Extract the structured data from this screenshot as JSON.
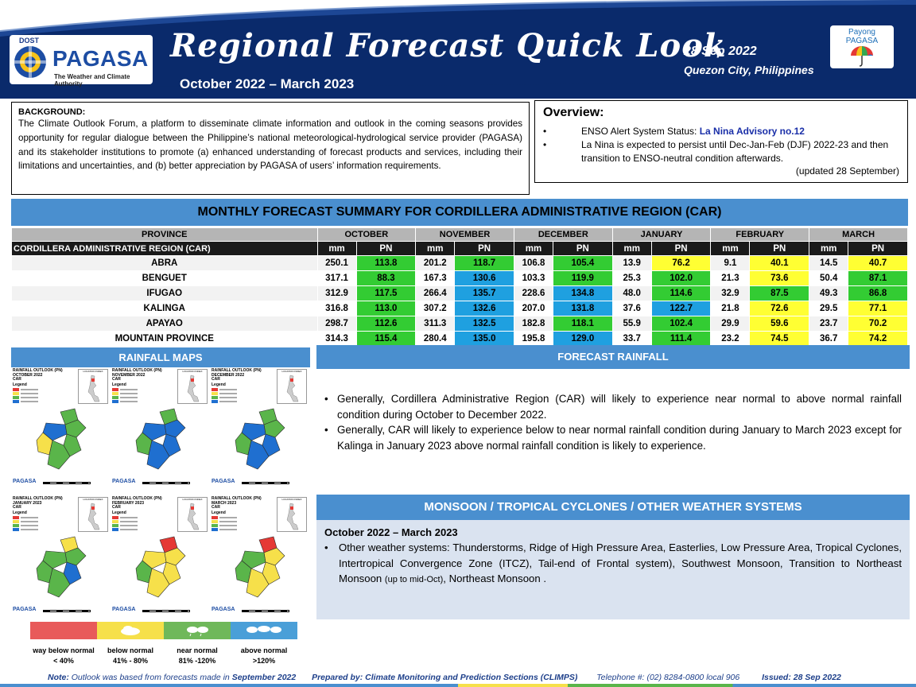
{
  "header": {
    "logo_dost": "DOST",
    "logo_name": "PAGASA",
    "logo_tagline": "The Weather and Climate Authority",
    "title": "Regional Forecast Quick Look",
    "subtitle": "October 2022 – March 2023",
    "date": "28 Sep 2022",
    "location": "Quezon City, Philippines",
    "payong_line1": "Payong",
    "payong_line2": "PAGASA",
    "colors": {
      "navy": "#0a2a6b",
      "accent": "#4a8fcf"
    }
  },
  "background": {
    "heading": "BACKGROUND:",
    "text": "The Climate Outlook Forum, a platform to disseminate climate information and outlook in the coming seasons provides opportunity for regular dialogue between the Philippine’s national meteorological-hydrological service provider (PAGASA) and its stakeholder institutions to promote (a) enhanced understanding of forecast products and services, including their limitations and uncertainties, and (b) better appreciation by PAGASA of users’ information requirements."
  },
  "overview": {
    "heading": "Overview:",
    "enso_label": "ENSO Alert System Status: ",
    "enso_value": "La Nina Advisory no.12",
    "lanina_text": "La Nina is expected to persist until Dec-Jan-Feb (DJF) 2022-23 and then transition to ENSO-neutral condition afterwards.",
    "updated": "(updated 28 September)"
  },
  "summary": {
    "title": "MONTHLY FORECAST SUMMARY FOR CORDILLERA ADMINISTRATIVE REGION (CAR)",
    "province_header": "PROVINCE",
    "region_label": "CORDILLERA ADMINISTRATIVE REGION (CAR)",
    "months": [
      "OCTOBER",
      "NOVEMBER",
      "DECEMBER",
      "JANUARY",
      "FEBRUARY",
      "MARCH"
    ],
    "col_mm": "mm",
    "col_pn": "PN",
    "rows": [
      {
        "province": "ABRA",
        "cells": [
          [
            "250.1",
            "113.8",
            "near"
          ],
          [
            "201.2",
            "118.7",
            "near"
          ],
          [
            "106.8",
            "105.4",
            "near"
          ],
          [
            "13.9",
            "76.2",
            "below"
          ],
          [
            "9.1",
            "40.1",
            "below"
          ],
          [
            "14.5",
            "40.7",
            "below"
          ]
        ]
      },
      {
        "province": "BENGUET",
        "cells": [
          [
            "317.1",
            "88.3",
            "near"
          ],
          [
            "167.3",
            "130.6",
            "above"
          ],
          [
            "103.3",
            "119.9",
            "near"
          ],
          [
            "25.3",
            "102.0",
            "near"
          ],
          [
            "21.3",
            "73.6",
            "below"
          ],
          [
            "50.4",
            "87.1",
            "near"
          ]
        ]
      },
      {
        "province": "IFUGAO",
        "cells": [
          [
            "312.9",
            "117.5",
            "near"
          ],
          [
            "266.4",
            "135.7",
            "above"
          ],
          [
            "228.6",
            "134.8",
            "above"
          ],
          [
            "48.0",
            "114.6",
            "near"
          ],
          [
            "32.9",
            "87.5",
            "near"
          ],
          [
            "49.3",
            "86.8",
            "near"
          ]
        ]
      },
      {
        "province": "KALINGA",
        "cells": [
          [
            "316.8",
            "113.0",
            "near"
          ],
          [
            "307.2",
            "132.6",
            "above"
          ],
          [
            "207.0",
            "131.8",
            "above"
          ],
          [
            "37.6",
            "122.7",
            "above"
          ],
          [
            "21.8",
            "72.6",
            "below"
          ],
          [
            "29.5",
            "77.1",
            "below"
          ]
        ]
      },
      {
        "province": "APAYAO",
        "cells": [
          [
            "298.7",
            "112.6",
            "near"
          ],
          [
            "311.3",
            "132.5",
            "above"
          ],
          [
            "182.8",
            "118.1",
            "near"
          ],
          [
            "55.9",
            "102.4",
            "near"
          ],
          [
            "29.9",
            "59.6",
            "below"
          ],
          [
            "23.7",
            "70.2",
            "below"
          ]
        ]
      },
      {
        "province": "MOUNTAIN PROVINCE",
        "cells": [
          [
            "314.3",
            "115.4",
            "near"
          ],
          [
            "280.4",
            "135.0",
            "above"
          ],
          [
            "195.8",
            "129.0",
            "above"
          ],
          [
            "33.7",
            "111.4",
            "near"
          ],
          [
            "23.2",
            "74.5",
            "below"
          ],
          [
            "36.7",
            "74.2",
            "below"
          ]
        ]
      }
    ],
    "category_colors": {
      "near": "#33cc33",
      "above": "#1fa0e0",
      "below": "#ffff33",
      "way_below": "#e53935"
    }
  },
  "maps": {
    "header": "RAINFALL MAPS",
    "cells": [
      {
        "title1": "RAINFALL OUTLOOK (PN)",
        "title2": "OCTOBER 2022",
        "title3": "CAR",
        "fills": [
          "#5ab54a",
          "#5ab54a",
          "#1f6fd0",
          "#5ab54a",
          "#f6e04a",
          "#5ab54a"
        ]
      },
      {
        "title1": "RAINFALL OUTLOOK (PN)",
        "title2": "NOVEMBER 2022",
        "title3": "CAR",
        "fills": [
          "#5ab54a",
          "#1f6fd0",
          "#1f6fd0",
          "#1f6fd0",
          "#5ab54a",
          "#1f6fd0"
        ]
      },
      {
        "title1": "RAINFALL OUTLOOK (PN)",
        "title2": "DECEMBER 2022",
        "title3": "CAR",
        "fills": [
          "#5ab54a",
          "#5ab54a",
          "#1f6fd0",
          "#1f6fd0",
          "#5ab54a",
          "#1f6fd0"
        ]
      },
      {
        "title1": "RAINFALL OUTLOOK (PN)",
        "title2": "JANUARY 2023",
        "title3": "CAR",
        "fills": [
          "#f6e04a",
          "#5ab54a",
          "#5ab54a",
          "#1f6fd0",
          "#5ab54a",
          "#5ab54a"
        ]
      },
      {
        "title1": "RAINFALL OUTLOOK (PN)",
        "title2": "FEBRUARY 2023",
        "title3": "CAR",
        "fills": [
          "#e53935",
          "#f6e04a",
          "#f6e04a",
          "#f6e04a",
          "#5ab54a",
          "#f6e04a"
        ]
      },
      {
        "title1": "RAINFALL OUTLOOK (PN)",
        "title2": "MARCH 2023",
        "title3": "CAR",
        "fills": [
          "#e53935",
          "#f6e04a",
          "#5ab54a",
          "#f6e04a",
          "#5ab54a",
          "#f6e04a"
        ]
      }
    ],
    "legend_title": "Legend",
    "logo_text": "PAGASA",
    "location_label": "LOCATION INDEX"
  },
  "categories": [
    {
      "line1": "way below normal",
      "line2": "< 40%",
      "color": "#e85a5a"
    },
    {
      "line1": "below normal",
      "line2": "41% - 80%",
      "color": "#f6e04a"
    },
    {
      "line1": "near normal",
      "line2": "81% -120%",
      "color": "#6fb85a"
    },
    {
      "line1": "above normal",
      "line2": ">120%",
      "color": "#4a9fd8"
    }
  ],
  "forecast_rainfall": {
    "header": "FORECAST RAINFALL",
    "bullets": [
      "Generally, Cordillera Administrative Region (CAR) will likely to experience near normal to above normal rainfall condition during October to December 2022.",
      "Generally, CAR will likely to experience below to near normal rainfall condition during January to March 2023 except for Kalinga in January 2023 above normal rainfall condition is likely to experience."
    ]
  },
  "monsoon": {
    "header": "MONSOON / TROPICAL CYCLONES / OTHER WEATHER SYSTEMS",
    "period": "October 2022 – March 2023",
    "text_main": "Other weather systems: Thunderstorms,  Ridge of High Pressure Area,  Easterlies, Low Pressure Area, Tropical Cyclones, Intertropical Convergence Zone (ITCZ), Tail-end of Frontal system), Southwest Monsoon, Transition to Northeast Monsoon ",
    "text_small": "(up to mid-Oct)",
    "text_end": ", Northeast Monsoon ."
  },
  "footer": {
    "note_label": "Note:",
    "note_text": " Outlook was based from forecasts made in ",
    "note_month": "September 2022",
    "prepared": "Prepared by: Climate Monitoring and Prediction Sections (CLIMPS)",
    "telephone": "Telephone #: (02) 8284-0800 local 906",
    "issued": "Issued: 28 Sep 2022"
  }
}
